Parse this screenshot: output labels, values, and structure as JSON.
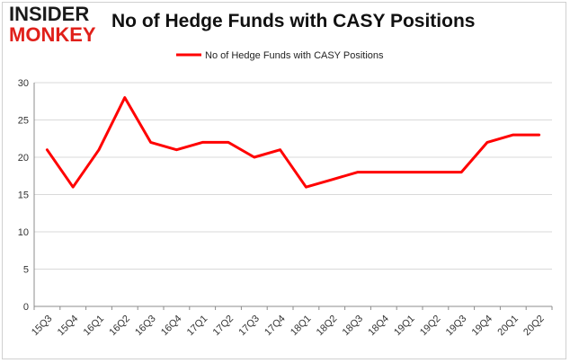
{
  "logo": {
    "line1": "INSIDER",
    "line2": "MONKEY"
  },
  "chart_data": {
    "type": "line",
    "title": "No of Hedge Funds with CASY Positions",
    "xlabel": "",
    "ylabel": "",
    "categories": [
      "15Q3",
      "15Q4",
      "16Q1",
      "16Q2",
      "16Q3",
      "16Q4",
      "17Q1",
      "17Q2",
      "17Q3",
      "17Q4",
      "18Q1",
      "18Q2",
      "18Q3",
      "18Q4",
      "19Q1",
      "19Q2",
      "19Q3",
      "19Q4",
      "20Q1",
      "20Q2"
    ],
    "series": [
      {
        "name": "No of Hedge Funds with CASY Positions",
        "color": "#ff0000",
        "values": [
          21,
          16,
          21,
          28,
          22,
          21,
          22,
          22,
          20,
          21,
          16,
          17,
          18,
          18,
          18,
          18,
          18,
          22,
          23,
          23
        ]
      }
    ],
    "ylim": [
      0,
      30
    ],
    "yticks": [
      0,
      5,
      10,
      15,
      20,
      25,
      30
    ],
    "grid": true,
    "legend": "top-center"
  }
}
